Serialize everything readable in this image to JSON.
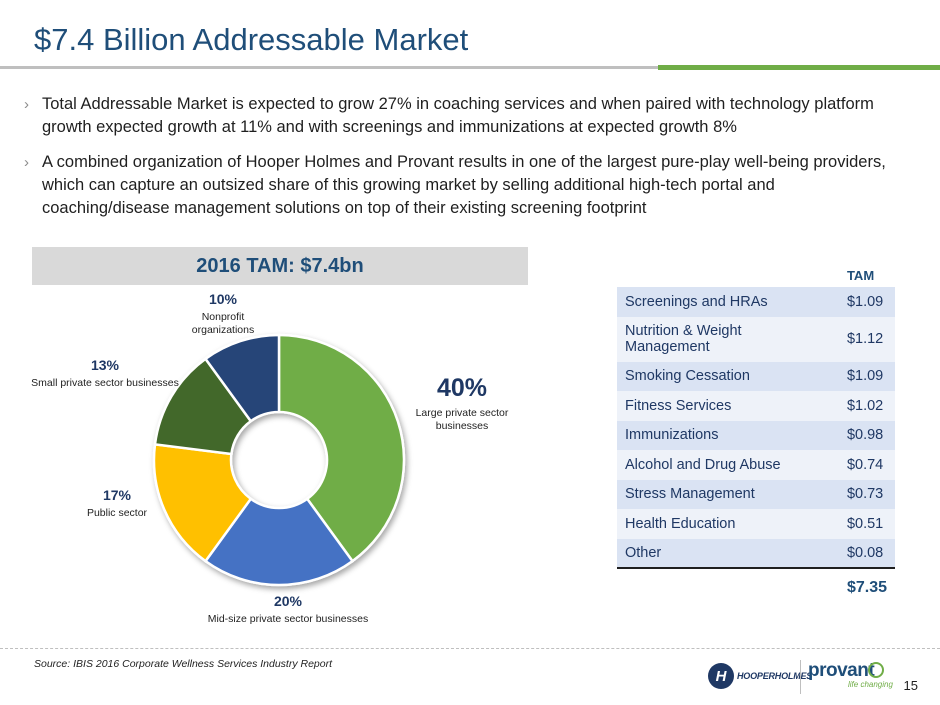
{
  "title": "$7.4 Billion Addressable Market",
  "bullets": [
    "Total Addressable Market is expected to grow 27% in coaching services and when paired with technology platform growth expected growth at 11% and with screenings and immunizations at expected growth 8%",
    "A combined organization of Hooper Holmes and Provant results in one of the largest pure-play well-being providers, which can capture an outsized share of this growing market by selling additional high-tech portal and coaching/disease management solutions on top of their existing screening footprint"
  ],
  "bullet_marker": "›",
  "chart_data": {
    "type": "pie",
    "donut": true,
    "title": "2016 TAM: $7.4bn",
    "slices": [
      {
        "label": "Large private sector businesses",
        "value": 40,
        "display": "40%",
        "color": "#70ad47"
      },
      {
        "label": "Mid-size private sector businesses",
        "value": 20,
        "display": "20%",
        "color": "#4472c4"
      },
      {
        "label": "Public sector",
        "value": 17,
        "display": "17%",
        "color": "#ffc000"
      },
      {
        "label": "Small private sector businesses",
        "value": 13,
        "display": "13%",
        "color": "#43682b"
      },
      {
        "label": "Nonprofit organizations",
        "value": 10,
        "display": "10%",
        "color": "#264478"
      }
    ],
    "start": "top",
    "direction": "clockwise"
  },
  "table": {
    "header": "TAM",
    "rows": [
      {
        "label": "Screenings and HRAs",
        "value": "$1.09"
      },
      {
        "label": "Nutrition & Weight Management",
        "value": "$1.12"
      },
      {
        "label": "Smoking Cessation",
        "value": "$1.09"
      },
      {
        "label": "Fitness Services",
        "value": "$1.02"
      },
      {
        "label": "Immunizations",
        "value": "$0.98"
      },
      {
        "label": "Alcohol and Drug Abuse",
        "value": "$0.74"
      },
      {
        "label": "Stress Management",
        "value": "$0.73"
      },
      {
        "label": "Health Education",
        "value": "$0.51"
      },
      {
        "label": "Other",
        "value": "$0.08"
      }
    ],
    "total": "$7.35"
  },
  "source": "Source: IBIS 2016 Corporate Wellness Services Industry Report",
  "logos": {
    "hooper_mark": "H",
    "hooper_text": "HOOPERHOLMES",
    "provant_text": "provant",
    "provant_tag": "life changing"
  },
  "page_number": "15",
  "colors": {
    "title": "#1f4e79",
    "accent_green": "#70ad47",
    "table_odd": "#dae3f3",
    "table_even": "#eef2f9"
  }
}
